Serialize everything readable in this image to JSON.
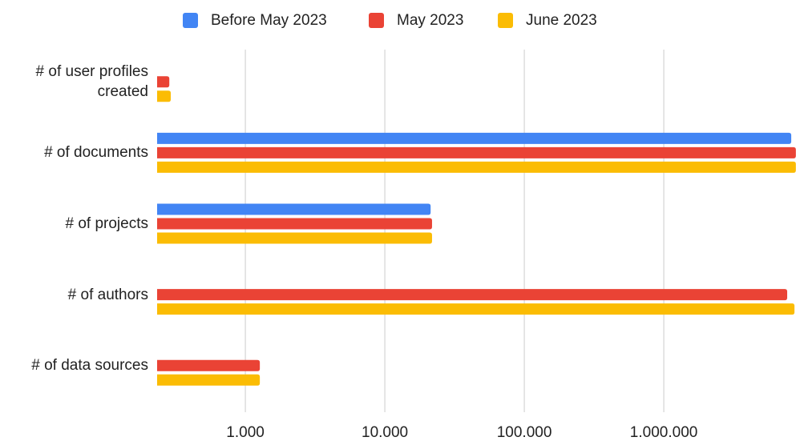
{
  "chart_data": {
    "type": "bar",
    "orientation": "horizontal",
    "log_x": true,
    "grid": true,
    "legend": "top",
    "categories": [
      "# of user profiles created",
      "# of documents",
      "# of projects",
      "# of authors",
      "# of data sources"
    ],
    "series": [
      {
        "name": "Before May 2023",
        "color": "#4285f4",
        "values": [
          null,
          8200000,
          21300,
          null,
          null
        ]
      },
      {
        "name": "May 2023",
        "color": "#ea4335",
        "values": [
          285,
          8850000,
          21800,
          7670000,
          1270
        ]
      },
      {
        "name": "June 2023",
        "color": "#fbbc04",
        "values": [
          292,
          8850000,
          21800,
          8650000,
          1270
        ]
      }
    ],
    "xlim": [
      233,
      8870000
    ],
    "xticks": [
      {
        "value": 1000,
        "label": "1.000"
      },
      {
        "value": 10000,
        "label": "10.000"
      },
      {
        "value": 100000,
        "label": "100.000"
      },
      {
        "value": 1000000,
        "label": "1.000.000"
      }
    ]
  }
}
